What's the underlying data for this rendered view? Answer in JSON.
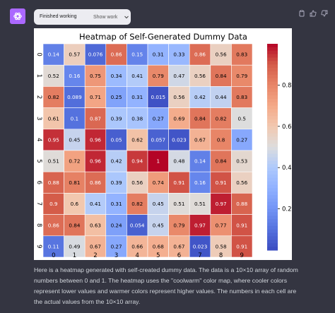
{
  "status": {
    "label": "Finished working",
    "toggle_label": "Show work"
  },
  "icons": {
    "assistant": "openai-logo-icon",
    "copy": "clipboard-icon",
    "like": "thumbs-up-icon",
    "dislike": "thumbs-down-icon",
    "toggle": "chevron-down-icon"
  },
  "colors": {
    "background": "#343541",
    "avatar": "#ab68ff",
    "cell_text_dark": "#000000",
    "cell_text_light": "#ffffff"
  },
  "chart_data": {
    "type": "heatmap",
    "title": "Heatmap of Self-Generated Dummy Data",
    "colormap": "coolwarm",
    "x_ticks": [
      "0",
      "1",
      "2",
      "3",
      "4",
      "5",
      "6",
      "7",
      "8",
      "9"
    ],
    "y_ticks": [
      "0",
      "1",
      "2",
      "3",
      "4",
      "5",
      "6",
      "7",
      "8",
      "9"
    ],
    "cell_labels": [
      [
        "0.14",
        "0.57",
        "0.076",
        "0.86",
        "0.15",
        "0.31",
        "0.33",
        "0.86",
        "0.56",
        "0.83"
      ],
      [
        "0.52",
        "0.16",
        "0.75",
        "0.34",
        "0.41",
        "0.79",
        "0.47",
        "0.56",
        "0.84",
        "0.79"
      ],
      [
        "0.82",
        "0.089",
        "0.71",
        "0.25",
        "0.31",
        "0.015",
        "0.56",
        "0.42",
        "0.44",
        "0.83"
      ],
      [
        "0.61",
        "0.1",
        "0.87",
        "0.39",
        "0.38",
        "0.27",
        "0.69",
        "0.84",
        "0.82",
        "0.5"
      ],
      [
        "0.95",
        "0.45",
        "0.96",
        "0.05",
        "0.62",
        "0.057",
        "0.023",
        "0.67",
        "0.8",
        "0.27"
      ],
      [
        "0.51",
        "0.72",
        "0.96",
        "0.42",
        "0.94",
        "1",
        "0.48",
        "0.14",
        "0.84",
        "0.53"
      ],
      [
        "0.88",
        "0.81",
        "0.86",
        "0.39",
        "0.56",
        "0.74",
        "0.91",
        "0.16",
        "0.91",
        "0.56"
      ],
      [
        "0.9",
        "0.6",
        "0.41",
        "0.31",
        "0.82",
        "0.45",
        "0.51",
        "0.51",
        "0.97",
        "0.88"
      ],
      [
        "0.86",
        "0.84",
        "0.63",
        "0.24",
        "0.054",
        "0.45",
        "0.79",
        "0.97",
        "0.77",
        "0.91"
      ],
      [
        "0.11",
        "0.49",
        "0.67",
        "0.27",
        "0.66",
        "0.68",
        "0.67",
        "0.023",
        "0.58",
        "0.91"
      ]
    ],
    "vmin": 0,
    "vmax": 1,
    "colorbar_ticks": [
      "0.8",
      "0.6",
      "0.4",
      "0.2"
    ],
    "colorbar_tick_values": [
      0.8,
      0.6,
      0.4,
      0.2
    ]
  },
  "message": {
    "text": "Here is a heatmap generated with self-created dummy data. The data is a 10×10 array of random numbers between 0 and 1. The heatmap uses the \"coolwarm\" color map, where cooler colors represent lower values and warmer colors represent higher values. The numbers in each cell are the actual values from the 10×10 array."
  }
}
